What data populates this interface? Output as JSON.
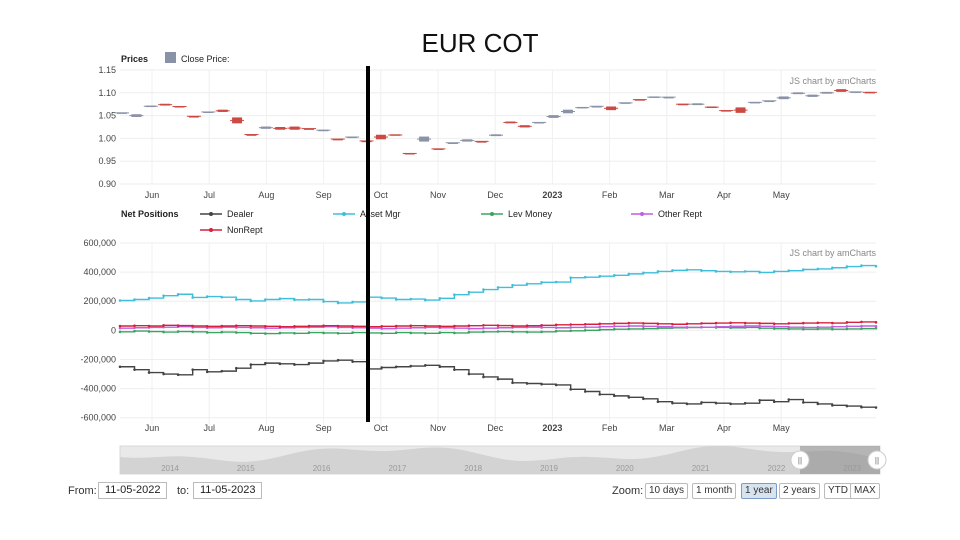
{
  "slide_title": "EUR COT",
  "chart_data": [
    {
      "type": "candlestick",
      "title": "Prices",
      "legend": [
        {
          "label": "Close Price:",
          "color": "#8a92a8"
        }
      ],
      "watermark": "JS chart by amCharts",
      "ylim": [
        0.9,
        1.15
      ],
      "yticks": [
        "1.15",
        "1.10",
        "1.05",
        "1.00",
        "0.95",
        "0.90"
      ],
      "xticks": [
        "Jun",
        "Jul",
        "Aug",
        "Sep",
        "Oct",
        "Nov",
        "Dec",
        "2023",
        "Feb",
        "Mar",
        "Apr",
        "May"
      ],
      "x_month_index": [
        0.5,
        1.5,
        2.5,
        3.5,
        4.5,
        5.5,
        6.5,
        7.5,
        8.5,
        9.5,
        10.5,
        11.5
      ],
      "up_color": "#8a92a8",
      "down_color": "#cc4a44",
      "candles": [
        {
          "open": 1.055,
          "close": 1.057
        },
        {
          "open": 1.047,
          "close": 1.053
        },
        {
          "open": 1.069,
          "close": 1.072
        },
        {
          "open": 1.076,
          "close": 1.072
        },
        {
          "open": 1.071,
          "close": 1.069
        },
        {
          "open": 1.049,
          "close": 1.048
        },
        {
          "open": 1.057,
          "close": 1.059
        },
        {
          "open": 1.063,
          "close": 1.058
        },
        {
          "open": 1.046,
          "close": 1.033
        },
        {
          "open": 1.009,
          "close": 1.008
        },
        {
          "open": 1.021,
          "close": 1.026
        },
        {
          "open": 1.025,
          "close": 1.019
        },
        {
          "open": 1.026,
          "close": 1.019
        },
        {
          "open": 1.022,
          "close": 1.021
        },
        {
          "open": 1.017,
          "close": 1.019
        },
        {
          "open": 0.999,
          "close": 0.998
        },
        {
          "open": 1.002,
          "close": 1.004
        },
        {
          "open": 0.995,
          "close": 0.994
        },
        {
          "open": 1.008,
          "close": 0.998
        },
        {
          "open": 1.009,
          "close": 1.006
        },
        {
          "open": 0.968,
          "close": 0.966
        },
        {
          "open": 0.993,
          "close": 1.004
        },
        {
          "open": 0.978,
          "close": 0.976
        },
        {
          "open": 0.99,
          "close": 0.991
        },
        {
          "open": 0.993,
          "close": 0.998
        },
        {
          "open": 0.994,
          "close": 0.993
        },
        {
          "open": 1.005,
          "close": 1.009
        },
        {
          "open": 1.037,
          "close": 1.033
        },
        {
          "open": 1.029,
          "close": 1.024
        },
        {
          "open": 1.034,
          "close": 1.036
        },
        {
          "open": 1.045,
          "close": 1.051
        },
        {
          "open": 1.055,
          "close": 1.063
        },
        {
          "open": 1.066,
          "close": 1.069
        },
        {
          "open": 1.07,
          "close": 1.071
        },
        {
          "open": 1.07,
          "close": 1.062
        },
        {
          "open": 1.077,
          "close": 1.079
        },
        {
          "open": 1.086,
          "close": 1.084
        },
        {
          "open": 1.089,
          "close": 1.092
        },
        {
          "open": 1.09,
          "close": 1.091
        },
        {
          "open": 1.076,
          "close": 1.074
        },
        {
          "open": 1.073,
          "close": 1.077
        },
        {
          "open": 1.07,
          "close": 1.067
        },
        {
          "open": 1.062,
          "close": 1.06
        },
        {
          "open": 1.068,
          "close": 1.056
        },
        {
          "open": 1.078,
          "close": 1.08
        },
        {
          "open": 1.082,
          "close": 1.083
        },
        {
          "open": 1.086,
          "close": 1.092
        },
        {
          "open": 1.097,
          "close": 1.101
        },
        {
          "open": 1.091,
          "close": 1.096
        },
        {
          "open": 1.098,
          "close": 1.102
        },
        {
          "open": 1.108,
          "close": 1.102
        },
        {
          "open": 1.101,
          "close": 1.103
        },
        {
          "open": 1.102,
          "close": 1.1
        }
      ]
    },
    {
      "type": "line",
      "title": "Net Positions",
      "watermark": "JS chart by amCharts",
      "ylim": [
        -650000,
        600000
      ],
      "yticks": [
        600000,
        400000,
        200000,
        0,
        -200000,
        -400000,
        -600000
      ],
      "ytick_labels": [
        "600,000",
        "400,000",
        "200,000",
        "0",
        "-200,000",
        "-400,000",
        "-600,000"
      ],
      "xticks": [
        "Jun",
        "Jul",
        "Aug",
        "Sep",
        "Oct",
        "Nov",
        "Dec",
        "2023",
        "Feb",
        "Mar",
        "Apr",
        "May"
      ],
      "series": [
        {
          "name": "Dealer",
          "color": "#444444",
          "values": [
            -250000,
            -270000,
            -290000,
            -300000,
            -305000,
            -270000,
            -285000,
            -280000,
            -260000,
            -235000,
            -225000,
            -230000,
            -235000,
            -225000,
            -210000,
            -205000,
            -215000,
            -265000,
            -255000,
            -250000,
            -245000,
            -240000,
            -250000,
            -270000,
            -300000,
            -320000,
            -335000,
            -360000,
            -365000,
            -370000,
            -375000,
            -405000,
            -420000,
            -440000,
            -450000,
            -460000,
            -470000,
            -490000,
            -500000,
            -505000,
            -495000,
            -500000,
            -505000,
            -500000,
            -480000,
            -490000,
            -475000,
            -495000,
            -505000,
            -515000,
            -520000,
            -528000,
            -530000
          ]
        },
        {
          "name": "Asset Mgr",
          "color": "#3fbfdc",
          "values": [
            205000,
            212000,
            222000,
            238000,
            248000,
            226000,
            232000,
            228000,
            212000,
            202000,
            212000,
            218000,
            210000,
            212000,
            198000,
            188000,
            195000,
            228000,
            222000,
            212000,
            215000,
            208000,
            220000,
            245000,
            262000,
            280000,
            295000,
            310000,
            320000,
            330000,
            332000,
            362000,
            365000,
            372000,
            378000,
            388000,
            395000,
            405000,
            412000,
            416000,
            410000,
            405000,
            402000,
            405000,
            398000,
            405000,
            410000,
            418000,
            422000,
            430000,
            438000,
            445000,
            440000
          ]
        },
        {
          "name": "Lev Money",
          "color": "#3aa560",
          "values": [
            -10000,
            -5000,
            -8000,
            -12000,
            -8000,
            -10000,
            -15000,
            -12000,
            -15000,
            -20000,
            -22000,
            -18000,
            -20000,
            -15000,
            -18000,
            -20000,
            -15000,
            -18000,
            -20000,
            -15000,
            -18000,
            -20000,
            -15000,
            -18000,
            -12000,
            -10000,
            -8000,
            -10000,
            -12000,
            -10000,
            -5000,
            -3000,
            0,
            5000,
            8000,
            10000,
            12000,
            15000,
            18000,
            20000,
            22000,
            20000,
            18000,
            20000,
            15000,
            12000,
            10000,
            8000,
            10000,
            8000,
            10000,
            12000,
            15000
          ]
        },
        {
          "name": "Other Rept",
          "color": "#c05fe0",
          "values": [
            15000,
            18000,
            20000,
            22000,
            25000,
            20000,
            18000,
            22000,
            20000,
            18000,
            15000,
            18000,
            20000,
            22000,
            25000,
            20000,
            18000,
            15000,
            12000,
            15000,
            18000,
            20000,
            18000,
            15000,
            12000,
            15000,
            18000,
            20000,
            22000,
            20000,
            18000,
            20000,
            22000,
            25000,
            28000,
            30000,
            28000,
            25000,
            22000,
            20000,
            22000,
            25000,
            28000,
            30000,
            28000,
            25000,
            22000,
            20000,
            22000,
            25000,
            28000,
            30000,
            28000
          ]
        },
        {
          "name": "NonRept",
          "color": "#d6203c",
          "values": [
            30000,
            32000,
            30000,
            35000,
            33000,
            30000,
            28000,
            30000,
            32000,
            30000,
            28000,
            25000,
            28000,
            30000,
            32000,
            30000,
            28000,
            25000,
            28000,
            30000,
            32000,
            30000,
            28000,
            30000,
            32000,
            35000,
            33000,
            30000,
            32000,
            35000,
            38000,
            40000,
            42000,
            45000,
            48000,
            50000,
            48000,
            45000,
            42000,
            45000,
            48000,
            50000,
            52000,
            50000,
            48000,
            45000,
            48000,
            50000,
            52000,
            50000,
            55000,
            58000,
            55000
          ]
        }
      ]
    }
  ],
  "navigator": {
    "year_labels": [
      "2014",
      "2015",
      "2016",
      "2017",
      "2018",
      "2019",
      "2020",
      "2021",
      "2022",
      "2023"
    ],
    "grip_left": "||",
    "grip_right": "||"
  },
  "controls": {
    "from_label": "From:",
    "from_value": "11-05-2022",
    "to_label": "to:",
    "to_value": "11-05-2023",
    "zoom_label": "Zoom:",
    "zoom_buttons": [
      {
        "label": "10 days",
        "active": false
      },
      {
        "label": "1 month",
        "active": false
      },
      {
        "label": "1 year",
        "active": true
      },
      {
        "label": "2 years",
        "active": false
      },
      {
        "label": "YTD",
        "active": false
      },
      {
        "label": "MAX",
        "active": false
      }
    ]
  }
}
